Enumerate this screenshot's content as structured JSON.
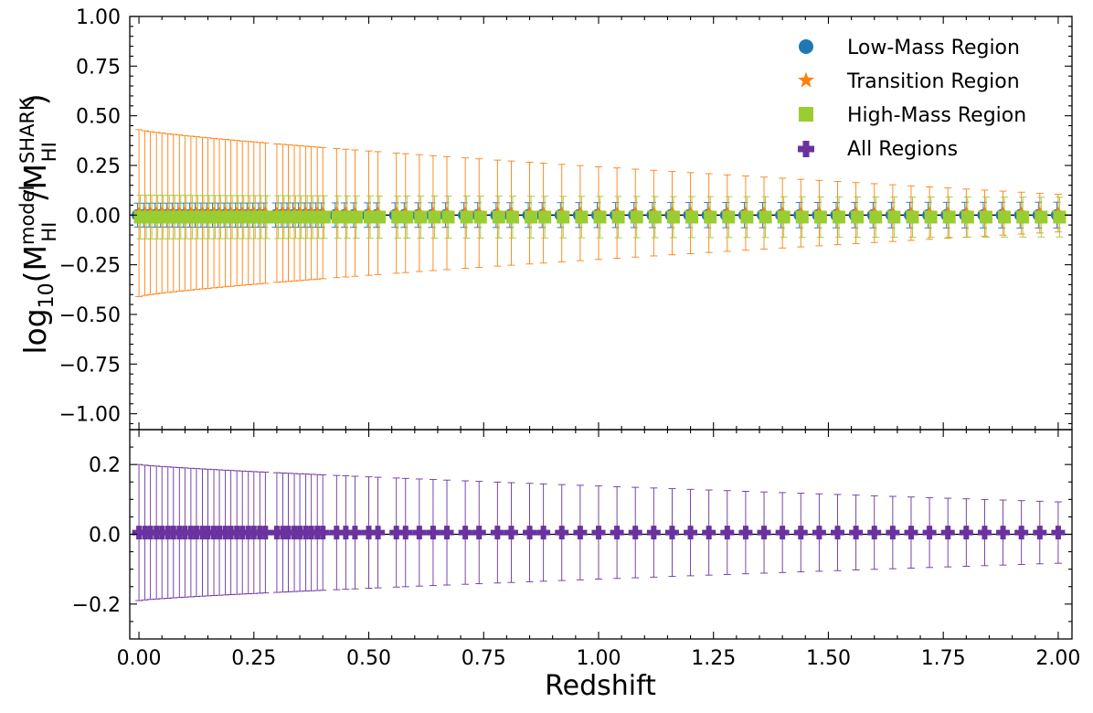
{
  "chart_data": {
    "type": "scatter",
    "x": [
      0.0,
      0.013,
      0.025,
      0.038,
      0.05,
      0.063,
      0.075,
      0.088,
      0.1,
      0.113,
      0.125,
      0.138,
      0.15,
      0.163,
      0.175,
      0.188,
      0.2,
      0.213,
      0.225,
      0.238,
      0.25,
      0.263,
      0.275,
      0.3,
      0.313,
      0.325,
      0.338,
      0.35,
      0.363,
      0.375,
      0.388,
      0.4,
      0.43,
      0.45,
      0.47,
      0.5,
      0.52,
      0.56,
      0.58,
      0.61,
      0.64,
      0.67,
      0.71,
      0.74,
      0.78,
      0.81,
      0.85,
      0.88,
      0.92,
      0.96,
      1.0,
      1.04,
      1.08,
      1.12,
      1.16,
      1.2,
      1.24,
      1.28,
      1.32,
      1.36,
      1.4,
      1.44,
      1.48,
      1.52,
      1.56,
      1.6,
      1.64,
      1.68,
      1.72,
      1.76,
      1.8,
      1.84,
      1.88,
      1.92,
      1.96,
      2.0
    ],
    "colors": {
      "low": "#1f77b4",
      "transition": "#ff7f0e",
      "high": "#9acd32",
      "all": "#6a329f",
      "axis": "#000000"
    },
    "top_panel": {
      "ylabel": "log10(M_HI^model / M_HI^SHARK)",
      "ylabel_main": "log",
      "ylabel_sub": "10",
      "ylabel_m": "M",
      "ylabel_sup1": "model",
      "ylabel_sub1": "HI",
      "ylabel_slash": "/M",
      "ylabel_sup2": "SHARK",
      "ylabel_sub2": "HI",
      "ylim": [
        -1.08,
        1.0
      ],
      "yticks": [
        -1.0,
        -0.75,
        -0.5,
        -0.25,
        0.0,
        0.25,
        0.5,
        0.75,
        1.0
      ],
      "ytick_labels": [
        "−1.00",
        "−0.75",
        "−0.50",
        "−0.25",
        "0.00",
        "0.25",
        "0.50",
        "0.75",
        "1.00"
      ],
      "series": [
        {
          "name": "Low-Mass Region",
          "key": "low",
          "marker": "circle",
          "value": 0.0,
          "err_start": 0.06,
          "err_end": 0.065
        },
        {
          "name": "Transition Region",
          "key": "transition",
          "marker": "star",
          "value": 0.01,
          "err_start": 0.42,
          "err_end": 0.095
        },
        {
          "name": "High-Mass Region",
          "key": "high",
          "marker": "square",
          "value": -0.01,
          "err_start": 0.11,
          "err_end": 0.1
        }
      ],
      "legend": {
        "location": "top-right",
        "entries": [
          "Low-Mass Region",
          "Transition Region",
          "High-Mass Region",
          "All Regions"
        ]
      }
    },
    "bottom_panel": {
      "ylim": [
        -0.3,
        0.3
      ],
      "yticks": [
        -0.2,
        0.0,
        0.2
      ],
      "ytick_labels": [
        "−0.2",
        "0.0",
        "0.2"
      ],
      "series": [
        {
          "name": "All Regions",
          "key": "all",
          "marker": "plus",
          "value": 0.005,
          "err_start": 0.195,
          "err_end": 0.088
        }
      ]
    },
    "xlabel": "Redshift",
    "xlim": [
      -0.02,
      2.03
    ],
    "xticks": [
      0.0,
      0.25,
      0.5,
      0.75,
      1.0,
      1.25,
      1.5,
      1.75,
      2.0
    ],
    "xtick_labels": [
      "0.00",
      "0.25",
      "0.50",
      "0.75",
      "1.00",
      "1.25",
      "1.50",
      "1.75",
      "2.00"
    ],
    "reference_line": 0.0
  }
}
